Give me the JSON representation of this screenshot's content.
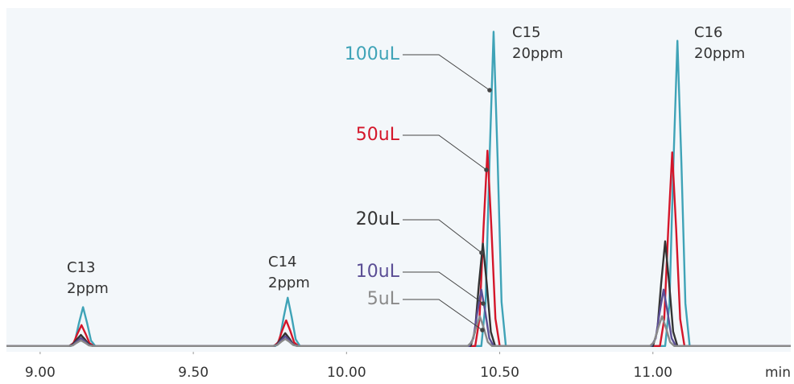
{
  "chart_data": {
    "type": "line",
    "xlabel": "min",
    "xlim": [
      8.89,
      11.45
    ],
    "ylim": [
      -1.7,
      100
    ],
    "xticks": [
      {
        "value": 9,
        "label": "9.00"
      },
      {
        "value": 9.5,
        "label": "9.50"
      },
      {
        "value": 10,
        "label": "10.00"
      },
      {
        "value": 10.5,
        "label": "10.50"
      },
      {
        "value": 11,
        "label": "11.00"
      }
    ],
    "peak_labels": [
      {
        "name": "C13",
        "concentration": "2ppm"
      },
      {
        "name": "C14",
        "concentration": "2ppm"
      },
      {
        "name": "C15",
        "concentration": "20ppm"
      },
      {
        "name": "C16",
        "concentration": "20ppm"
      }
    ],
    "series": [
      {
        "name": "100uL",
        "color": "#3fa3b7",
        "x": [
          8.89,
          9.1,
          9.114,
          9.127,
          9.14,
          9.153,
          9.166,
          9.18,
          9.768,
          9.782,
          9.795,
          9.808,
          9.821,
          9.834,
          9.848,
          10.44,
          10.454,
          10.467,
          10.48,
          10.493,
          10.506,
          10.52,
          11.04,
          11.054,
          11.067,
          11.08,
          11.093,
          11.106,
          11.12,
          11.45
        ],
        "values": [
          0,
          0,
          1.6,
          6.9,
          11.5,
          6.9,
          1.6,
          0,
          0,
          2,
          8.6,
          14.3,
          8.6,
          2,
          0,
          0,
          13,
          55.8,
          93,
          55.8,
          13,
          0,
          0,
          12.6,
          54.2,
          90.3,
          54.2,
          12.6,
          0,
          0
        ]
      },
      {
        "name": "50uL",
        "color": "#d4162a",
        "x": [
          8.89,
          9.095,
          9.109,
          9.122,
          9.135,
          9.148,
          9.161,
          9.175,
          9.763,
          9.777,
          9.79,
          9.803,
          9.816,
          9.829,
          9.843,
          10.42,
          10.434,
          10.447,
          10.46,
          10.473,
          10.486,
          10.5,
          11.023,
          11.037,
          11.05,
          11.063,
          11.076,
          11.089,
          11.103,
          11.45
        ],
        "values": [
          0,
          0,
          0.9,
          3.7,
          6.2,
          3.7,
          0.9,
          0,
          0,
          1.1,
          4.6,
          7.6,
          4.6,
          1.1,
          0,
          0,
          8.1,
          34.7,
          57.8,
          34.7,
          8.1,
          0,
          0,
          8,
          34.4,
          57.3,
          34.4,
          8,
          0,
          0
        ]
      },
      {
        "name": "20uL",
        "color": "#333333",
        "x": [
          8.89,
          9.093,
          9.107,
          9.12,
          9.133,
          9.146,
          9.159,
          9.173,
          9.76,
          9.774,
          9.787,
          9.8,
          9.813,
          9.826,
          9.84,
          10.405,
          10.419,
          10.432,
          10.445,
          10.458,
          10.471,
          10.485,
          11,
          11.014,
          11.027,
          11.04,
          11.053,
          11.066,
          11.08,
          11.45
        ],
        "values": [
          0,
          0,
          0.5,
          2,
          3.3,
          2,
          0.5,
          0,
          0,
          0.5,
          2.3,
          3.8,
          2.3,
          0.5,
          0,
          0,
          4.2,
          18.2,
          30.3,
          18.2,
          4.2,
          0,
          0,
          4.3,
          18.6,
          31,
          18.6,
          4.3,
          0,
          0
        ]
      },
      {
        "name": "10uL",
        "color": "#5b4e95",
        "x": [
          8.89,
          9.093,
          9.107,
          9.12,
          9.133,
          9.146,
          9.159,
          9.173,
          9.76,
          9.774,
          9.787,
          9.8,
          9.813,
          9.826,
          9.84,
          10.4,
          10.414,
          10.427,
          10.44,
          10.453,
          10.466,
          10.48,
          10.995,
          11.009,
          11.022,
          11.035,
          11.048,
          11.061,
          11.075,
          11.45
        ],
        "values": [
          0,
          0,
          0.3,
          1.4,
          2.4,
          1.4,
          0.3,
          0,
          0,
          0.4,
          1.7,
          2.9,
          1.7,
          0.4,
          0,
          0,
          2.3,
          10,
          16.7,
          10,
          2.3,
          0,
          0,
          2.3,
          10,
          16.7,
          10,
          2.3,
          0,
          0
        ]
      },
      {
        "name": "5uL",
        "color": "#8a8a8a",
        "x": [
          8.89,
          9.093,
          9.107,
          9.12,
          9.133,
          9.146,
          9.159,
          9.173,
          9.76,
          9.774,
          9.787,
          9.8,
          9.813,
          9.826,
          9.84,
          10.395,
          10.409,
          10.422,
          10.435,
          10.448,
          10.461,
          10.475,
          10.99,
          11.004,
          11.017,
          11.03,
          11.043,
          11.056,
          11.07,
          11.45
        ],
        "values": [
          0,
          0,
          0.2,
          1,
          1.7,
          1,
          0.2,
          0,
          0,
          0.3,
          1.3,
          2.1,
          1.3,
          0.3,
          0,
          0,
          1.2,
          5.3,
          8.8,
          5.3,
          1.2,
          0,
          0,
          1.2,
          5.3,
          8.8,
          5.3,
          1.2,
          0,
          0
        ]
      }
    ]
  }
}
